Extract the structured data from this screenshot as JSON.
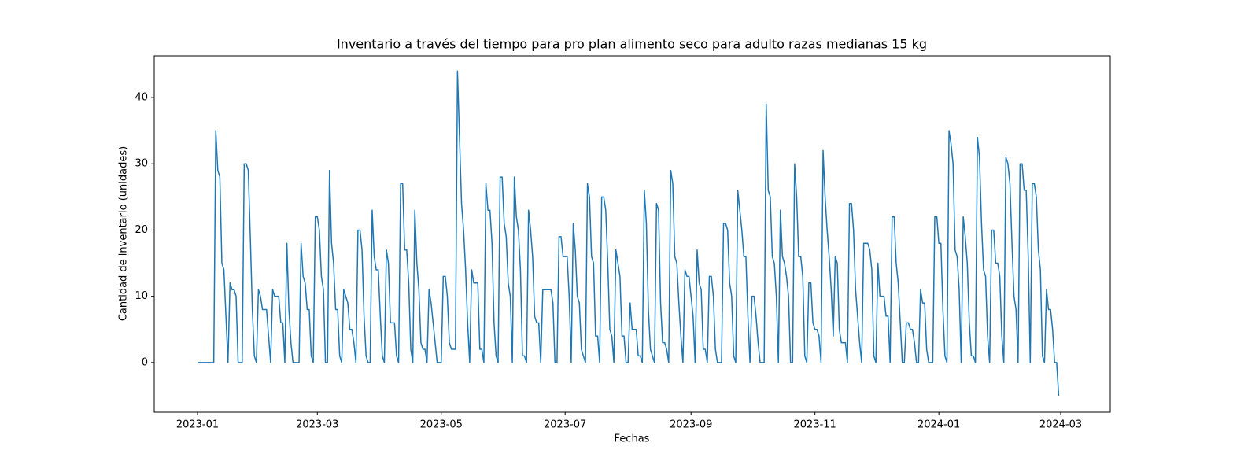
{
  "chart_data": {
    "type": "line",
    "title": "Inventario a través del tiempo para pro plan alimento seco para adulto razas medianas 15 kg",
    "xlabel": "Fechas",
    "ylabel": "Cantidad de inventario (unidades)",
    "color": "#1f77b4",
    "x": [
      0,
      1,
      2,
      3,
      4,
      5,
      6,
      7,
      8,
      9,
      10,
      11,
      12,
      13,
      14,
      15,
      16,
      17,
      18,
      19,
      20,
      21,
      22,
      23,
      24,
      25,
      26,
      27,
      28,
      29,
      30,
      31,
      32,
      33,
      34,
      35,
      36,
      37,
      38,
      39,
      40,
      41,
      42,
      43,
      44,
      45,
      46,
      47,
      48,
      49,
      50,
      51,
      52,
      53,
      54,
      55,
      56,
      57,
      58,
      59,
      60,
      61,
      62,
      63,
      64,
      65,
      66,
      67,
      68,
      69,
      70,
      71,
      72,
      73,
      74,
      75,
      76,
      77,
      78,
      79,
      80,
      81,
      82,
      83,
      84,
      85,
      86,
      87,
      88,
      89,
      90,
      91,
      92,
      93,
      94,
      95,
      96,
      97,
      98,
      99,
      100,
      101,
      102,
      103,
      104,
      105,
      106,
      107,
      108,
      109,
      110,
      111,
      112,
      113,
      114,
      115,
      116,
      117,
      118,
      119,
      120,
      121,
      122,
      123,
      124,
      125,
      126,
      127,
      128,
      129,
      130,
      131,
      132,
      133,
      134,
      135,
      136,
      137,
      138,
      139,
      140,
      141,
      142,
      143,
      144,
      145,
      146,
      147,
      148,
      149,
      150,
      151,
      152,
      153,
      154,
      155,
      156,
      157,
      158,
      159,
      160,
      161,
      162,
      163,
      164,
      165,
      166,
      167,
      168,
      169,
      170,
      171,
      172,
      173,
      174,
      175,
      176,
      177,
      178,
      179,
      180,
      181,
      182,
      183,
      184,
      185,
      186,
      187,
      188,
      189,
      190,
      191,
      192,
      193,
      194,
      195,
      196,
      197,
      198,
      199,
      200,
      201,
      202,
      203,
      204,
      205,
      206,
      207,
      208,
      209,
      210,
      211,
      212,
      213,
      214,
      215,
      216,
      217,
      218,
      219,
      220,
      221,
      222,
      223,
      224,
      225,
      226,
      227,
      228,
      229,
      230,
      231,
      232,
      233,
      234,
      235,
      236,
      237,
      238,
      239,
      240,
      241,
      242,
      243,
      244,
      245,
      246,
      247,
      248,
      249,
      250,
      251,
      252,
      253,
      254,
      255,
      256,
      257,
      258,
      259,
      260,
      261,
      262,
      263,
      264,
      265,
      266,
      267,
      268,
      269,
      270,
      271,
      272,
      273,
      274,
      275,
      276,
      277,
      278,
      279,
      280,
      281,
      282,
      283,
      284,
      285,
      286,
      287,
      288,
      289,
      290,
      291,
      292,
      293,
      294,
      295,
      296,
      297,
      298,
      299,
      300,
      301,
      302,
      303,
      304,
      305,
      306,
      307,
      308,
      309,
      310,
      311,
      312,
      313,
      314,
      315,
      316,
      317,
      318,
      319,
      320,
      321,
      322,
      323,
      324,
      325,
      326,
      327,
      328,
      329,
      330,
      331,
      332,
      333,
      334,
      335,
      336,
      337,
      338,
      339,
      340,
      341,
      342,
      343,
      344,
      345,
      346,
      347,
      348,
      349,
      350,
      351,
      352,
      353,
      354,
      355,
      356,
      357,
      358,
      359,
      360,
      361,
      362,
      363,
      364,
      365,
      366,
      367,
      368,
      369,
      370,
      371,
      372,
      373,
      374,
      375,
      376,
      377,
      378,
      379,
      380,
      381,
      382,
      383,
      384,
      385,
      386,
      387,
      388,
      389,
      390,
      391,
      392,
      393,
      394,
      395,
      396,
      397,
      398,
      399,
      400,
      401,
      402,
      403,
      404,
      405,
      406,
      407,
      408,
      409,
      410,
      411,
      412,
      413,
      414,
      415,
      416,
      417,
      418,
      419,
      420,
      421,
      422,
      423,
      424
    ],
    "values": [
      0,
      0,
      0,
      0,
      0,
      0,
      0,
      0,
      0,
      35,
      29,
      28,
      15,
      14,
      7,
      0,
      12,
      11,
      11,
      10,
      0,
      0,
      0,
      30,
      30,
      29,
      19,
      8,
      1,
      0,
      11,
      10,
      8,
      8,
      8,
      4,
      0,
      11,
      10,
      10,
      10,
      6,
      6,
      0,
      18,
      8,
      3,
      0,
      0,
      0,
      0,
      18,
      13,
      12,
      8,
      8,
      1,
      0,
      22,
      22,
      20,
      13,
      11,
      0,
      0,
      29,
      18,
      15,
      8,
      8,
      1,
      0,
      11,
      10,
      9,
      5,
      5,
      3,
      0,
      20,
      20,
      17,
      7,
      1,
      0,
      0,
      23,
      16,
      14,
      14,
      7,
      1,
      0,
      17,
      15,
      6,
      6,
      6,
      1,
      0,
      27,
      27,
      17,
      17,
      12,
      2,
      0,
      23,
      15,
      11,
      3,
      2,
      2,
      0,
      11,
      9,
      6,
      3,
      0,
      0,
      0,
      13,
      13,
      10,
      3,
      2,
      2,
      2,
      44,
      34,
      24,
      20,
      14,
      6,
      0,
      14,
      12,
      12,
      12,
      2,
      2,
      0,
      27,
      23,
      23,
      18,
      6,
      1,
      0,
      28,
      28,
      21,
      19,
      12,
      10,
      0,
      28,
      22,
      20,
      14,
      1,
      1,
      0,
      23,
      20,
      16,
      7,
      6,
      6,
      0,
      11,
      11,
      11,
      11,
      11,
      9,
      0,
      0,
      19,
      19,
      16,
      16,
      16,
      10,
      0,
      21,
      17,
      10,
      9,
      2,
      1,
      0,
      27,
      25,
      16,
      15,
      4,
      4,
      0,
      25,
      25,
      23,
      15,
      5,
      4,
      0,
      17,
      15,
      13,
      4,
      4,
      0,
      0,
      9,
      5,
      5,
      5,
      1,
      1,
      0,
      26,
      21,
      8,
      2,
      1,
      0,
      24,
      23,
      9,
      3,
      3,
      2,
      0,
      29,
      27,
      16,
      15,
      9,
      4,
      0,
      14,
      13,
      13,
      10,
      7,
      0,
      17,
      12,
      11,
      2,
      2,
      0,
      13,
      13,
      10,
      2,
      0,
      0,
      0,
      21,
      21,
      20,
      12,
      10,
      1,
      0,
      26,
      23,
      20,
      16,
      16,
      7,
      0,
      10,
      10,
      7,
      3,
      0,
      0,
      0,
      39,
      26,
      25,
      16,
      15,
      10,
      0,
      23,
      16,
      15,
      13,
      10,
      0,
      0,
      30,
      25,
      16,
      16,
      13,
      1,
      0,
      12,
      12,
      6,
      5,
      5,
      4,
      0,
      32,
      25,
      20,
      16,
      11,
      4,
      16,
      15,
      5,
      3,
      3,
      3,
      0,
      24,
      24,
      20,
      11,
      7,
      3,
      0,
      18,
      18,
      18,
      17,
      14,
      1,
      0,
      15,
      10,
      10,
      10,
      7,
      7,
      0,
      22,
      22,
      15,
      12,
      6,
      0,
      0,
      6,
      6,
      5,
      5,
      3,
      0,
      0,
      11,
      9,
      9,
      2,
      0,
      0,
      0,
      22,
      22,
      18,
      18,
      8,
      1,
      0,
      35,
      33,
      30,
      17,
      16,
      11,
      0,
      22,
      19,
      15,
      6,
      1,
      1,
      0,
      34,
      31,
      21,
      14,
      13,
      4,
      0,
      20,
      20,
      15,
      15,
      13,
      4,
      0,
      31,
      30,
      27,
      18,
      10,
      8,
      0,
      30,
      30,
      26,
      26,
      16,
      0,
      27,
      27,
      25,
      17,
      14,
      1,
      0,
      11,
      8,
      8,
      5,
      0,
      0,
      -5
    ],
    "xlim": [
      -21.3,
      449.4
    ],
    "ylim": [
      -7.5,
      46.3
    ],
    "xticks": [
      {
        "value": 0,
        "label": "2023-01"
      },
      {
        "value": 59,
        "label": "2023-03"
      },
      {
        "value": 120,
        "label": "2023-05"
      },
      {
        "value": 181,
        "label": "2023-07"
      },
      {
        "value": 243,
        "label": "2023-09"
      },
      {
        "value": 304,
        "label": "2023-11"
      },
      {
        "value": 365,
        "label": "2024-01"
      },
      {
        "value": 425,
        "label": "2024-03"
      }
    ],
    "yticks": [
      0,
      10,
      20,
      30,
      40
    ]
  }
}
